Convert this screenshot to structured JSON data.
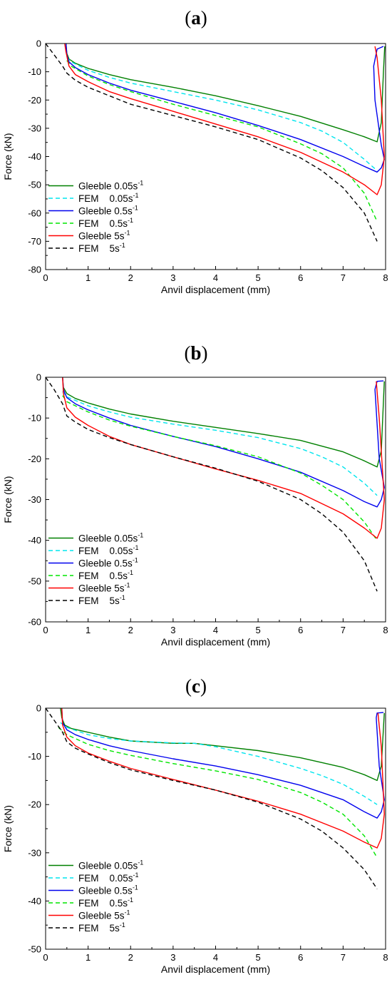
{
  "chart_data": [
    {
      "type": "line",
      "panel": "a",
      "xlabel": "Anvil displacement (mm)",
      "ylabel": "Force (kN)",
      "xlim": [
        0,
        8
      ],
      "ylim": [
        -80,
        0
      ],
      "xticks": [
        0,
        1,
        2,
        3,
        4,
        5,
        6,
        7,
        8
      ],
      "yticks": [
        0,
        -10,
        -20,
        -30,
        -40,
        -50,
        -60,
        -70,
        -80
      ],
      "legend_position": "bottom-left",
      "series": [
        {
          "name": "Gleeble 0.05s",
          "sup": "-1",
          "color": "#008000",
          "dash": "solid",
          "x": [
            0.48,
            0.5,
            0.55,
            0.7,
            1.0,
            1.5,
            2.0,
            3.0,
            4.0,
            5.0,
            6.0,
            7.0,
            7.5,
            7.8,
            7.9,
            7.95,
            7.98
          ],
          "y": [
            0,
            -3.5,
            -5.5,
            -7.0,
            -8.8,
            -11.0,
            -12.8,
            -15.5,
            -18.5,
            -22.0,
            -25.8,
            -30.5,
            -33.0,
            -34.8,
            -28.0,
            -10.0,
            -1.0
          ]
        },
        {
          "name": "FEM    0.05s",
          "sup": "-1",
          "color": "#00e5ee",
          "dash": "dashed",
          "x": [
            0.5,
            0.6,
            1.0,
            1.5,
            2.0,
            3.0,
            4.0,
            5.0,
            6.0,
            6.5,
            7.0,
            7.5,
            7.8
          ],
          "y": [
            -5.0,
            -6.5,
            -9.5,
            -12.0,
            -14.0,
            -17.0,
            -20.0,
            -23.5,
            -28.0,
            -31.0,
            -35.0,
            -41.0,
            -45.0
          ]
        },
        {
          "name": "Gleeble 0.5s",
          "sup": "-1",
          "color": "#0000ee",
          "dash": "solid",
          "x": [
            0.48,
            0.5,
            0.55,
            0.7,
            1.0,
            1.5,
            2.0,
            3.0,
            4.0,
            5.0,
            6.0,
            7.0,
            7.5,
            7.8,
            7.9,
            7.97,
            7.9,
            7.75,
            7.72,
            7.8,
            7.95
          ],
          "y": [
            0,
            -4.0,
            -6.5,
            -8.5,
            -11.0,
            -14.0,
            -16.5,
            -20.5,
            -24.5,
            -29.0,
            -34.0,
            -40.0,
            -43.5,
            -45.5,
            -44.0,
            -41.0,
            -36.0,
            -20.0,
            -8.0,
            -2.0,
            -1.0
          ]
        },
        {
          "name": "FEM    0.5s",
          "sup": "-1",
          "color": "#00e600",
          "dash": "dashed",
          "x": [
            0.5,
            0.6,
            1.0,
            1.5,
            2.0,
            3.0,
            4.0,
            5.0,
            6.0,
            6.5,
            7.0,
            7.5,
            7.8
          ],
          "y": [
            -6.0,
            -8.0,
            -11.5,
            -14.5,
            -17.0,
            -21.5,
            -25.5,
            -29.5,
            -35.5,
            -39.0,
            -44.0,
            -53.0,
            -63.0
          ]
        },
        {
          "name": "Gleeble 5s",
          "sup": "-1",
          "color": "#ff0000",
          "dash": "solid",
          "x": [
            0.45,
            0.48,
            0.55,
            0.7,
            1.0,
            1.5,
            2.0,
            3.0,
            4.0,
            5.0,
            6.0,
            7.0,
            7.5,
            7.8,
            7.9,
            7.97,
            7.9,
            7.8,
            7.75
          ],
          "y": [
            0,
            -3.0,
            -8.0,
            -11.0,
            -13.5,
            -17.0,
            -19.5,
            -24.0,
            -28.5,
            -33.0,
            -38.5,
            -45.5,
            -50.0,
            -53.5,
            -50.0,
            -40.0,
            -20.0,
            -5.0,
            -1.0
          ]
        },
        {
          "name": "FEM    5s",
          "sup": "-1",
          "color": "#000000",
          "dash": "dashed",
          "x": [
            0,
            0.2,
            0.4,
            0.5,
            0.7,
            1.0,
            1.5,
            2.0,
            3.0,
            4.0,
            5.0,
            6.0,
            6.5,
            7.0,
            7.5,
            7.8
          ],
          "y": [
            0,
            -4.0,
            -8.0,
            -10.5,
            -13.0,
            -15.5,
            -18.5,
            -21.5,
            -25.5,
            -29.5,
            -34.0,
            -40.5,
            -45.0,
            -51.0,
            -60.0,
            -70.0
          ]
        }
      ]
    },
    {
      "type": "line",
      "panel": "b",
      "xlabel": "Anvil displacement (mm)",
      "ylabel": "Force (kN)",
      "xlim": [
        0,
        8
      ],
      "ylim": [
        -60,
        0
      ],
      "xticks": [
        0,
        1,
        2,
        3,
        4,
        5,
        6,
        7,
        8
      ],
      "yticks": [
        0,
        -10,
        -20,
        -30,
        -40,
        -50,
        -60
      ],
      "legend_position": "bottom-left",
      "series": [
        {
          "name": "Gleeble 0.05s",
          "sup": "-1",
          "color": "#008000",
          "dash": "solid",
          "x": [
            0.4,
            0.42,
            0.5,
            0.7,
            1.0,
            1.5,
            2.0,
            3.0,
            4.0,
            5.0,
            6.0,
            7.0,
            7.5,
            7.8,
            7.9,
            7.97
          ],
          "y": [
            0,
            -2.5,
            -4.0,
            -5.2,
            -6.3,
            -7.8,
            -9.0,
            -10.8,
            -12.3,
            -13.8,
            -15.5,
            -18.3,
            -20.5,
            -22.0,
            -18.0,
            -1.0
          ]
        },
        {
          "name": "FEM    0.05s",
          "sup": "-1",
          "color": "#00e5ee",
          "dash": "dashed",
          "x": [
            0.4,
            0.5,
            1.0,
            1.5,
            2.0,
            3.0,
            4.0,
            5.0,
            6.0,
            6.5,
            7.0,
            7.5,
            7.8
          ],
          "y": [
            -3.5,
            -4.8,
            -7.0,
            -8.5,
            -9.8,
            -11.5,
            -13.0,
            -14.8,
            -17.5,
            -19.5,
            -22.0,
            -26.0,
            -29.0
          ]
        },
        {
          "name": "Gleeble 0.5s",
          "sup": "-1",
          "color": "#0000ee",
          "dash": "solid",
          "x": [
            0.4,
            0.42,
            0.5,
            0.7,
            1.0,
            1.5,
            2.0,
            3.0,
            4.0,
            5.0,
            6.0,
            7.0,
            7.5,
            7.8,
            7.9,
            7.97,
            7.85,
            7.75,
            7.8,
            7.95
          ],
          "y": [
            0,
            -3.0,
            -5.0,
            -6.5,
            -8.0,
            -10.0,
            -11.8,
            -14.5,
            -17.0,
            -20.0,
            -23.3,
            -27.8,
            -30.5,
            -31.8,
            -30.0,
            -27.0,
            -20.0,
            -3.0,
            -1.0,
            -0.9
          ]
        },
        {
          "name": "FEM    0.5s",
          "sup": "-1",
          "color": "#00e600",
          "dash": "dashed",
          "x": [
            0.4,
            0.5,
            1.0,
            1.5,
            2.0,
            3.0,
            4.0,
            5.0,
            6.0,
            6.5,
            7.0,
            7.5,
            7.8
          ],
          "y": [
            -4.5,
            -6.0,
            -8.5,
            -10.5,
            -12.0,
            -14.5,
            -16.8,
            -19.5,
            -23.5,
            -26.5,
            -30.0,
            -35.5,
            -40.0
          ]
        },
        {
          "name": "Gleeble 5s",
          "sup": "-1",
          "color": "#ff0000",
          "dash": "solid",
          "x": [
            0.4,
            0.42,
            0.5,
            0.7,
            1.0,
            1.5,
            2.0,
            3.0,
            4.0,
            5.0,
            6.0,
            7.0,
            7.5,
            7.8,
            7.9,
            7.97,
            7.85,
            7.78
          ],
          "y": [
            0,
            -4.0,
            -7.5,
            -9.8,
            -11.8,
            -14.5,
            -16.5,
            -19.5,
            -22.5,
            -25.3,
            -28.5,
            -33.5,
            -37.0,
            -39.5,
            -37.0,
            -30.0,
            -10.0,
            -1.0
          ]
        },
        {
          "name": "FEM    5s",
          "sup": "-1",
          "color": "#000000",
          "dash": "dashed",
          "x": [
            0,
            0.2,
            0.4,
            0.5,
            0.7,
            1.0,
            1.5,
            2.0,
            3.0,
            4.0,
            5.0,
            6.0,
            6.5,
            7.0,
            7.5,
            7.8
          ],
          "y": [
            0,
            -3.0,
            -6.5,
            -9.5,
            -11.0,
            -12.8,
            -14.8,
            -16.5,
            -19.5,
            -22.3,
            -25.5,
            -30.0,
            -33.5,
            -38.0,
            -45.0,
            -52.5
          ]
        }
      ]
    },
    {
      "type": "line",
      "panel": "c",
      "xlabel": "Anvil displacement (mm)",
      "ylabel": "Force (kN)",
      "xlim": [
        0,
        8
      ],
      "ylim": [
        -50,
        0
      ],
      "xticks": [
        0,
        1,
        2,
        3,
        4,
        5,
        6,
        7,
        8
      ],
      "yticks": [
        0,
        -10,
        -20,
        -30,
        -40,
        -50
      ],
      "legend_position": "bottom-left",
      "series": [
        {
          "name": "Gleeble 0.05s",
          "sup": "-1",
          "color": "#008000",
          "dash": "solid",
          "x": [
            0.35,
            0.38,
            0.45,
            0.6,
            1.0,
            1.5,
            2.0,
            3.0,
            3.5,
            4.0,
            5.0,
            6.0,
            7.0,
            7.5,
            7.8,
            7.9,
            7.97
          ],
          "y": [
            0,
            -2.0,
            -3.5,
            -4.2,
            -5.0,
            -6.0,
            -6.8,
            -7.3,
            -7.3,
            -7.8,
            -8.8,
            -10.3,
            -12.3,
            -13.8,
            -15.0,
            -12.0,
            -1.0
          ]
        },
        {
          "name": "FEM    0.05s",
          "sup": "-1",
          "color": "#00e5ee",
          "dash": "dashed",
          "x": [
            0.35,
            0.5,
            1.0,
            1.5,
            2.0,
            3.0,
            3.5,
            4.0,
            5.0,
            6.0,
            6.5,
            7.0,
            7.5,
            7.8
          ],
          "y": [
            -3.0,
            -4.0,
            -5.5,
            -6.3,
            -6.8,
            -7.2,
            -7.3,
            -8.0,
            -10.0,
            -12.5,
            -14.0,
            -15.8,
            -18.3,
            -20.0
          ]
        },
        {
          "name": "Gleeble 0.5s",
          "sup": "-1",
          "color": "#0000ee",
          "dash": "solid",
          "x": [
            0.38,
            0.4,
            0.5,
            0.7,
            1.0,
            1.5,
            2.0,
            3.0,
            4.0,
            5.0,
            6.0,
            7.0,
            7.5,
            7.8,
            7.9,
            7.97,
            7.85,
            7.78,
            7.8,
            7.95
          ],
          "y": [
            0,
            -3.0,
            -4.5,
            -5.5,
            -6.5,
            -7.8,
            -8.8,
            -10.5,
            -12.0,
            -13.8,
            -16.0,
            -19.0,
            -21.5,
            -22.8,
            -21.5,
            -19.0,
            -12.0,
            -2.0,
            -1.0,
            -0.9
          ]
        },
        {
          "name": "FEM    0.5s",
          "sup": "-1",
          "color": "#00e600",
          "dash": "dashed",
          "x": [
            0.3,
            0.5,
            1.0,
            1.5,
            2.0,
            3.0,
            4.0,
            5.0,
            6.0,
            6.5,
            7.0,
            7.5,
            7.8
          ],
          "y": [
            -4.0,
            -5.5,
            -7.5,
            -8.8,
            -9.8,
            -11.5,
            -13.0,
            -14.8,
            -17.5,
            -19.5,
            -22.0,
            -26.5,
            -31.0
          ]
        },
        {
          "name": "Gleeble 5s",
          "sup": "-1",
          "color": "#ff0000",
          "dash": "solid",
          "x": [
            0.38,
            0.4,
            0.5,
            0.7,
            1.0,
            1.5,
            2.0,
            3.0,
            4.0,
            5.0,
            6.0,
            7.0,
            7.5,
            7.8,
            7.9,
            7.97,
            7.9,
            7.82
          ],
          "y": [
            0,
            -3.5,
            -6.0,
            -7.8,
            -9.3,
            -11.0,
            -12.5,
            -14.8,
            -17.0,
            -19.3,
            -22.0,
            -25.5,
            -27.8,
            -29.0,
            -27.0,
            -22.0,
            -8.0,
            -1.0
          ]
        },
        {
          "name": "FEM    5s",
          "sup": "-1",
          "color": "#000000",
          "dash": "dashed",
          "x": [
            0,
            0.2,
            0.4,
            0.5,
            0.7,
            1.0,
            1.5,
            2.0,
            3.0,
            4.0,
            5.0,
            6.0,
            6.5,
            7.0,
            7.5,
            7.8
          ],
          "y": [
            0,
            -2.5,
            -5.0,
            -7.0,
            -8.3,
            -9.5,
            -11.3,
            -12.8,
            -15.0,
            -17.0,
            -19.5,
            -23.0,
            -25.5,
            -29.0,
            -33.5,
            -37.5
          ]
        }
      ]
    }
  ]
}
